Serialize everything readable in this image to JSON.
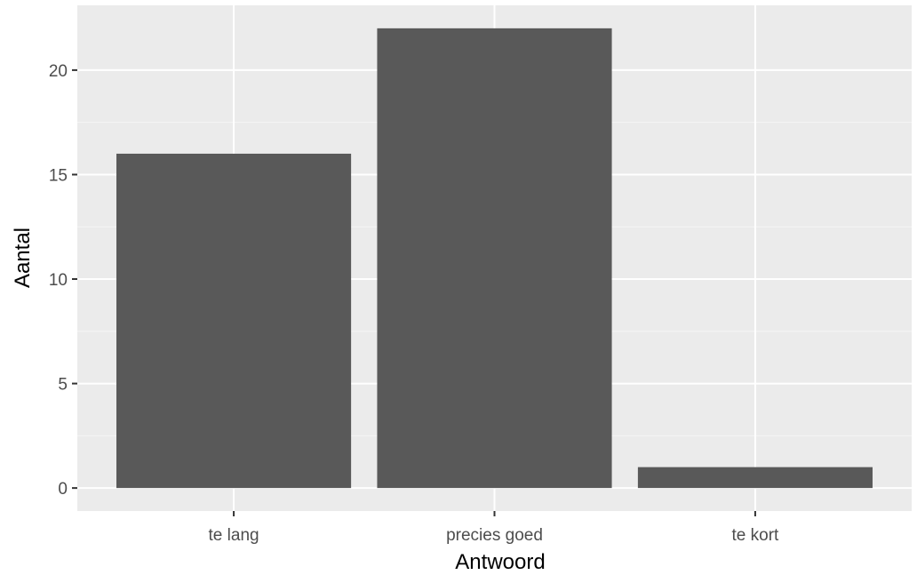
{
  "chart_data": {
    "type": "bar",
    "title": "",
    "xlabel": "Antwoord",
    "ylabel": "Aantal",
    "categories": [
      "te lang",
      "precies goed",
      "te kort"
    ],
    "values": [
      16,
      22,
      1
    ],
    "ylim": [
      -1.1,
      23.1
    ],
    "yticks": [
      0,
      5,
      10,
      15,
      20
    ],
    "ytick_labels": [
      "0",
      "5",
      "10",
      "15",
      "20"
    ],
    "grid": true,
    "legend": "none",
    "colors": {
      "bar": "#595959",
      "panel": "#ebebeb",
      "grid_major": "#ffffff",
      "tick": "#333333",
      "tick_text": "#4d4d4d"
    }
  }
}
